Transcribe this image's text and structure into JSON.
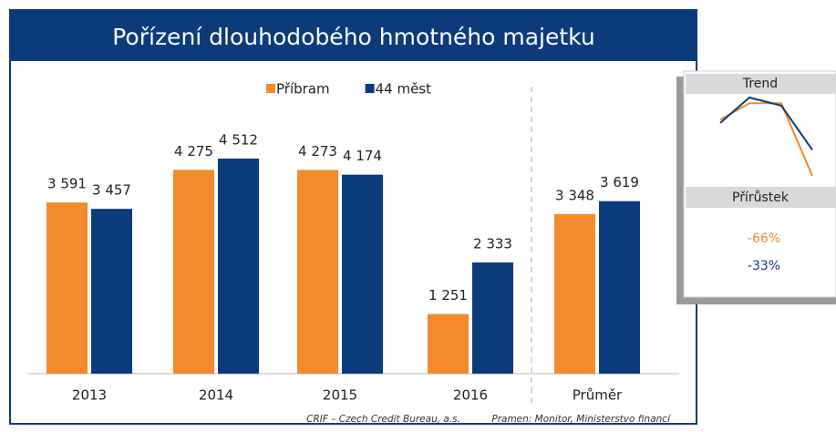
{
  "chart_data": {
    "type": "bar",
    "title": "Pořízení dlouhodobého hmotného majetku",
    "categories": [
      "2013",
      "2014",
      "2015",
      "2016",
      "Průměr"
    ],
    "series": [
      {
        "name": "Příbram",
        "color": "#f28a2e",
        "values": [
          3591,
          4275,
          4273,
          1251,
          3348
        ],
        "value_labels": [
          "3 591",
          "4 275",
          "4 273",
          "1 251",
          "3 348"
        ],
        "growth": -66,
        "growth_label": "-66%"
      },
      {
        "name": "44 měst",
        "color": "#0b3b7b",
        "values": [
          3457,
          4512,
          4174,
          2333,
          3619
        ],
        "value_labels": [
          "3 457",
          "4 512",
          "4 174",
          "2 333",
          "3 619"
        ],
        "growth": -33,
        "growth_label": "-33%"
      }
    ],
    "trend_title": "Trend",
    "growth_title": "Přírůstek",
    "credit": "CRIF – Czech Credit Bureau, a.s.",
    "source": "Pramen: Monitor, Ministerstvo financí"
  }
}
